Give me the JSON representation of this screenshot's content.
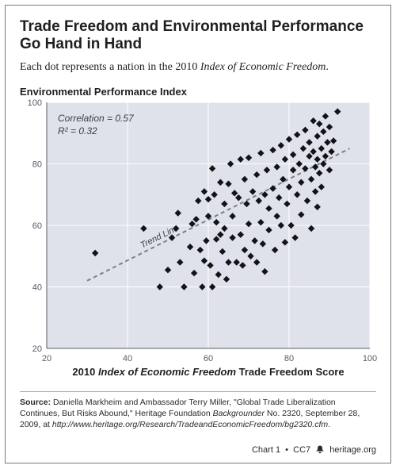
{
  "title_line1": "Trade Freedom and Environmental Performance",
  "title_line2": "Go Hand in Hand",
  "subtitle_pre": "Each dot represents a nation in the 2010 ",
  "subtitle_ital": "Index of Economic Freedom",
  "subtitle_post": ".",
  "y_axis_label": "Environmental Performance Index",
  "x_axis_label_pre": "2010 ",
  "x_axis_label_ital": "Index of Economic Freedom",
  "x_axis_label_post": " Trade Freedom Score",
  "annotation_corr": "Correlation = 0.57",
  "annotation_r2": "R² = 0.32",
  "trend_label": "Trend Line",
  "source_label": "Source:",
  "source_text_1": " Daniella Markheim and Ambassador Terry Miller, \"Global Trade Liberalization Continues, But Risks Abound,\" Heritage Foundation ",
  "source_ital": "Backgrounder",
  "source_text_2": " No. 2320, September 28, 2009, at ",
  "source_url": "http://www.heritage.org/Research/TradeandEconomicFreedom/bg2320.cfm",
  "source_text_3": ".",
  "footer_chart": "Chart 1",
  "footer_code": "CC7",
  "footer_site": "heritage.org",
  "chart": {
    "type": "scatter",
    "plot_bg": "#dfe2ea",
    "grid_color": "#ffffff",
    "axis_color": "#565c67",
    "point_color": "#111318",
    "trend_color": "#7a7f88",
    "text_color": "#3a3f47",
    "xlim": [
      20,
      100
    ],
    "ylim": [
      20,
      100
    ],
    "xticks": [
      20,
      40,
      60,
      80,
      100
    ],
    "yticks": [
      20,
      40,
      60,
      80,
      100
    ],
    "tick_fontsize": 11,
    "label_fontsize": 13,
    "annot_fontsize": 12,
    "marker_size": 4.2,
    "trend_start": [
      30,
      42
    ],
    "trend_end": [
      95,
      85
    ],
    "points": [
      [
        32,
        51
      ],
      [
        44,
        59
      ],
      [
        48,
        40
      ],
      [
        50,
        45.5
      ],
      [
        51,
        56
      ],
      [
        52,
        59
      ],
      [
        52.5,
        64
      ],
      [
        53,
        48
      ],
      [
        54,
        40
      ],
      [
        55.5,
        53
      ],
      [
        56,
        60.5
      ],
      [
        56.5,
        44.5
      ],
      [
        57,
        62
      ],
      [
        57.5,
        68
      ],
      [
        58,
        52
      ],
      [
        58.5,
        40
      ],
      [
        59,
        71
      ],
      [
        59,
        48.5
      ],
      [
        59.5,
        55
      ],
      [
        60,
        63
      ],
      [
        60,
        68.5
      ],
      [
        60.5,
        47
      ],
      [
        61,
        40
      ],
      [
        61,
        78.5
      ],
      [
        61.5,
        70
      ],
      [
        62,
        55.5
      ],
      [
        62,
        61
      ],
      [
        62.5,
        44
      ],
      [
        63,
        57
      ],
      [
        63,
        74
      ],
      [
        63.5,
        51.5
      ],
      [
        64,
        67
      ],
      [
        64,
        59
      ],
      [
        64.5,
        42.5
      ],
      [
        65,
        73.5
      ],
      [
        65,
        48
      ],
      [
        65.5,
        80
      ],
      [
        66,
        63
      ],
      [
        66,
        56
      ],
      [
        66.5,
        70.5
      ],
      [
        67,
        48
      ],
      [
        67.5,
        69
      ],
      [
        68,
        81.5
      ],
      [
        68,
        57
      ],
      [
        68.5,
        47
      ],
      [
        69,
        75
      ],
      [
        69,
        52
      ],
      [
        69.5,
        67
      ],
      [
        70,
        82
      ],
      [
        70,
        60.5
      ],
      [
        70.5,
        50
      ],
      [
        71,
        71
      ],
      [
        71.5,
        55
      ],
      [
        72,
        76.5
      ],
      [
        72,
        48
      ],
      [
        72.5,
        68
      ],
      [
        73,
        83.5
      ],
      [
        73,
        61
      ],
      [
        73.5,
        54
      ],
      [
        74,
        70
      ],
      [
        74,
        45
      ],
      [
        74.5,
        78
      ],
      [
        75,
        65.5
      ],
      [
        75,
        58.5
      ],
      [
        76,
        84.5
      ],
      [
        76,
        72
      ],
      [
        76.5,
        52
      ],
      [
        77,
        79
      ],
      [
        77,
        63
      ],
      [
        77.5,
        69
      ],
      [
        78,
        86
      ],
      [
        78,
        60
      ],
      [
        78.5,
        75
      ],
      [
        79,
        54.5
      ],
      [
        79,
        81.5
      ],
      [
        79.5,
        67
      ],
      [
        80,
        88
      ],
      [
        80,
        72.5
      ],
      [
        80.5,
        60
      ],
      [
        81,
        83
      ],
      [
        81,
        78
      ],
      [
        81.5,
        56
      ],
      [
        82,
        89.5
      ],
      [
        82,
        70
      ],
      [
        82.5,
        80
      ],
      [
        83,
        74
      ],
      [
        83,
        63.5
      ],
      [
        83.5,
        85
      ],
      [
        84,
        91
      ],
      [
        84,
        78.5
      ],
      [
        84.5,
        68
      ],
      [
        85,
        82.5
      ],
      [
        85,
        87
      ],
      [
        85.5,
        75
      ],
      [
        85.5,
        59
      ],
      [
        86,
        94
      ],
      [
        86,
        84
      ],
      [
        86.5,
        79
      ],
      [
        86.5,
        71
      ],
      [
        87,
        89
      ],
      [
        87,
        81.5
      ],
      [
        87,
        66
      ],
      [
        87.5,
        93
      ],
      [
        87.5,
        77
      ],
      [
        88,
        85
      ],
      [
        88,
        72.5
      ],
      [
        88.5,
        90.5
      ],
      [
        88.5,
        80
      ],
      [
        89,
        82.5
      ],
      [
        89,
        95.5
      ],
      [
        89.5,
        87
      ],
      [
        90,
        78
      ],
      [
        90,
        92
      ],
      [
        90.5,
        84
      ],
      [
        91,
        87.5
      ],
      [
        92,
        97
      ]
    ]
  }
}
